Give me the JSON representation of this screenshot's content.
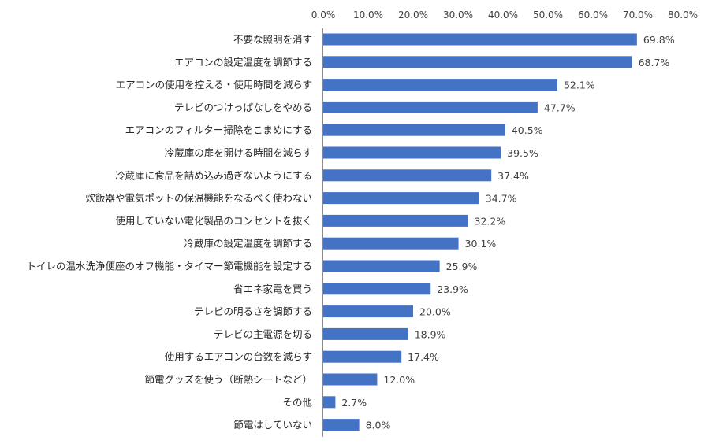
{
  "chart_data": {
    "type": "bar",
    "orientation": "horizontal",
    "title": "",
    "xlabel": "",
    "ylabel": "",
    "xlim": [
      0,
      80
    ],
    "x_ticks": [
      "0.0%",
      "10.0%",
      "20.0%",
      "30.0%",
      "40.0%",
      "50.0%",
      "60.0%",
      "70.0%",
      "80.0%"
    ],
    "x_tick_values": [
      0,
      10,
      20,
      30,
      40,
      50,
      60,
      70,
      80
    ],
    "x_axis_position": "top",
    "grid": false,
    "bar_color": "#4472C4",
    "categories": [
      "不要な照明を消す",
      "エアコンの設定温度を調節する",
      "エアコンの使用を控える・使用時間を減らす",
      "テレビのつけっぱなしをやめる",
      "エアコンのフィルター掃除をこまめにする",
      "冷蔵庫の扉を開ける時間を減らす",
      "冷蔵庫に食品を詰め込み過ぎないようにする",
      "炊飯器や電気ポットの保温機能をなるべく使わない",
      "使用していない電化製品のコンセントを抜く",
      "冷蔵庫の設定温度を調節する",
      "トイレの温水洗浄便座のオフ機能・タイマー節電機能を設定する",
      "省エネ家電を買う",
      "テレビの明るさを調節する",
      "テレビの主電源を切る",
      "使用するエアコンの台数を減らす",
      "節電グッズを使う（断熱シートなど）",
      "その他",
      "節電はしていない"
    ],
    "values": [
      69.8,
      68.7,
      52.1,
      47.7,
      40.5,
      39.5,
      37.4,
      34.7,
      32.2,
      30.1,
      25.9,
      23.9,
      20.0,
      18.9,
      17.4,
      12.0,
      2.7,
      8.0
    ],
    "data_labels": [
      "69.8%",
      "68.7%",
      "52.1%",
      "47.7%",
      "40.5%",
      "39.5%",
      "37.4%",
      "34.7%",
      "32.2%",
      "30.1%",
      "25.9%",
      "23.9%",
      "20.0%",
      "18.9%",
      "17.4%",
      "12.0%",
      "2.7%",
      "8.0%"
    ]
  }
}
